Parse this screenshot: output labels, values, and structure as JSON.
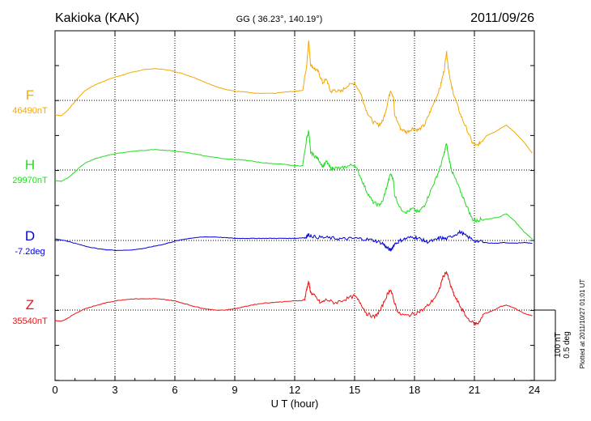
{
  "header": {
    "station": "Kakioka (KAK)",
    "coords": "GG ( 36.23°, 140.19°)",
    "date": "2011/09/26"
  },
  "side_note": "Plotted at 2011/10/27 01:01 UT",
  "scale_bar": {
    "label1": "100 nT",
    "label2": "0.5 deg"
  },
  "chart_data": {
    "type": "line",
    "title": "Kakioka (KAK)",
    "xlabel": "U T (hour)",
    "ylabel": "",
    "xlim": [
      0,
      24
    ],
    "x_ticks": [
      0,
      3,
      6,
      9,
      12,
      15,
      18,
      21,
      24
    ],
    "x_tick_labels": [
      "0",
      "3",
      "6",
      "9",
      "12",
      "15",
      "18",
      "21",
      "24"
    ],
    "grid": true,
    "scale": "100 nT per scale bar for F, H, Z (offset from baseline); 0.5 deg per scale bar for D",
    "series": [
      {
        "key": "F",
        "name": "F",
        "baseline_label": "46490nT",
        "color": "#f5a800",
        "unit": "nT",
        "points": [
          [
            0,
            -0.2
          ],
          [
            0.3,
            -0.22
          ],
          [
            0.6,
            -0.15
          ],
          [
            0.9,
            -0.05
          ],
          [
            1.2,
            0.05
          ],
          [
            1.5,
            0.14
          ],
          [
            2,
            0.22
          ],
          [
            2.5,
            0.28
          ],
          [
            3,
            0.33
          ],
          [
            3.5,
            0.37
          ],
          [
            4,
            0.41
          ],
          [
            4.5,
            0.44
          ],
          [
            5,
            0.45
          ],
          [
            5.5,
            0.44
          ],
          [
            6,
            0.41
          ],
          [
            6.5,
            0.37
          ],
          [
            7,
            0.32
          ],
          [
            7.5,
            0.26
          ],
          [
            8,
            0.2
          ],
          [
            8.5,
            0.16
          ],
          [
            9,
            0.13
          ],
          [
            9.5,
            0.12
          ],
          [
            10,
            0.1
          ],
          [
            10.5,
            0.1
          ],
          [
            11,
            0.1
          ],
          [
            11.5,
            0.12
          ],
          [
            12,
            0.13
          ],
          [
            12.4,
            0.14
          ],
          [
            12.6,
            0.5
          ],
          [
            12.7,
            0.85
          ],
          [
            12.8,
            0.5
          ],
          [
            13,
            0.45
          ],
          [
            13.2,
            0.4
          ],
          [
            13.4,
            0.25
          ],
          [
            13.6,
            0.3
          ],
          [
            13.8,
            0.12
          ],
          [
            14,
            0.15
          ],
          [
            14.3,
            0.12
          ],
          [
            14.6,
            0.2
          ],
          [
            15,
            0.25
          ],
          [
            15.3,
            0.1
          ],
          [
            15.6,
            -0.15
          ],
          [
            15.9,
            -0.3
          ],
          [
            16.2,
            -0.35
          ],
          [
            16.4,
            -0.3
          ],
          [
            16.6,
            -0.1
          ],
          [
            16.8,
            0.15
          ],
          [
            16.95,
            0.05
          ],
          [
            17,
            -0.2
          ],
          [
            17.3,
            -0.4
          ],
          [
            17.6,
            -0.45
          ],
          [
            17.9,
            -0.4
          ],
          [
            18.2,
            -0.42
          ],
          [
            18.5,
            -0.35
          ],
          [
            18.8,
            -0.15
          ],
          [
            19.1,
            0.05
          ],
          [
            19.3,
            0.2
          ],
          [
            19.5,
            0.45
          ],
          [
            19.6,
            0.7
          ],
          [
            19.7,
            0.45
          ],
          [
            19.85,
            0.2
          ],
          [
            20,
            0.05
          ],
          [
            20.3,
            -0.2
          ],
          [
            20.6,
            -0.4
          ],
          [
            20.9,
            -0.6
          ],
          [
            21.1,
            -0.65
          ],
          [
            21.3,
            -0.6
          ],
          [
            21.6,
            -0.5
          ],
          [
            22,
            -0.45
          ],
          [
            22.3,
            -0.4
          ],
          [
            22.6,
            -0.35
          ],
          [
            23,
            -0.45
          ],
          [
            23.5,
            -0.6
          ],
          [
            23.9,
            -0.75
          ]
        ]
      },
      {
        "key": "H",
        "name": "H",
        "baseline_label": "29970nT",
        "color": "#22dd22",
        "unit": "nT",
        "points": [
          [
            0,
            -0.15
          ],
          [
            0.3,
            -0.16
          ],
          [
            0.6,
            -0.12
          ],
          [
            0.9,
            -0.05
          ],
          [
            1.2,
            0.03
          ],
          [
            1.5,
            0.1
          ],
          [
            2,
            0.16
          ],
          [
            2.5,
            0.2
          ],
          [
            3,
            0.23
          ],
          [
            3.5,
            0.25
          ],
          [
            4,
            0.27
          ],
          [
            4.5,
            0.28
          ],
          [
            5,
            0.29
          ],
          [
            5.5,
            0.28
          ],
          [
            6,
            0.27
          ],
          [
            6.5,
            0.25
          ],
          [
            7,
            0.23
          ],
          [
            7.5,
            0.2
          ],
          [
            8,
            0.18
          ],
          [
            8.5,
            0.16
          ],
          [
            9,
            0.15
          ],
          [
            9.5,
            0.14
          ],
          [
            10,
            0.12
          ],
          [
            10.5,
            0.1
          ],
          [
            11,
            0.09
          ],
          [
            11.5,
            0.08
          ],
          [
            12,
            0.06
          ],
          [
            12.4,
            0.06
          ],
          [
            12.6,
            0.45
          ],
          [
            12.7,
            0.55
          ],
          [
            12.8,
            0.25
          ],
          [
            13,
            0.2
          ],
          [
            13.2,
            0.15
          ],
          [
            13.4,
            0.05
          ],
          [
            13.6,
            0.12
          ],
          [
            13.8,
            0.02
          ],
          [
            14,
            0.03
          ],
          [
            14.3,
            0.02
          ],
          [
            14.6,
            0.05
          ],
          [
            15,
            0.08
          ],
          [
            15.3,
            -0.1
          ],
          [
            15.6,
            -0.3
          ],
          [
            15.9,
            -0.45
          ],
          [
            16.2,
            -0.5
          ],
          [
            16.4,
            -0.45
          ],
          [
            16.6,
            -0.25
          ],
          [
            16.8,
            -0.05
          ],
          [
            16.95,
            -0.15
          ],
          [
            17,
            -0.35
          ],
          [
            17.3,
            -0.55
          ],
          [
            17.6,
            -0.6
          ],
          [
            17.9,
            -0.55
          ],
          [
            18.2,
            -0.6
          ],
          [
            18.5,
            -0.5
          ],
          [
            18.8,
            -0.3
          ],
          [
            19.1,
            -0.1
          ],
          [
            19.3,
            0.05
          ],
          [
            19.5,
            0.25
          ],
          [
            19.6,
            0.38
          ],
          [
            19.7,
            0.2
          ],
          [
            19.85,
            0.0
          ],
          [
            20,
            -0.1
          ],
          [
            20.3,
            -0.3
          ],
          [
            20.6,
            -0.5
          ],
          [
            20.9,
            -0.7
          ],
          [
            21.1,
            -0.72
          ],
          [
            21.3,
            -0.7
          ],
          [
            21.6,
            -0.7
          ],
          [
            22,
            -0.68
          ],
          [
            22.3,
            -0.66
          ],
          [
            22.6,
            -0.62
          ],
          [
            23,
            -0.72
          ],
          [
            23.5,
            -0.88
          ],
          [
            23.9,
            -0.98
          ]
        ]
      },
      {
        "key": "D",
        "name": "D",
        "baseline_label": "-7.2deg",
        "color": "#0000dd",
        "unit": "deg",
        "points": [
          [
            0,
            0.02
          ],
          [
            0.5,
            0.0
          ],
          [
            1,
            -0.04
          ],
          [
            1.5,
            -0.08
          ],
          [
            2,
            -0.11
          ],
          [
            2.5,
            -0.13
          ],
          [
            3,
            -0.14
          ],
          [
            3.5,
            -0.14
          ],
          [
            4,
            -0.13
          ],
          [
            4.5,
            -0.11
          ],
          [
            5,
            -0.08
          ],
          [
            5.5,
            -0.05
          ],
          [
            6,
            -0.01
          ],
          [
            6.5,
            0.02
          ],
          [
            7,
            0.04
          ],
          [
            7.5,
            0.05
          ],
          [
            8,
            0.05
          ],
          [
            8.5,
            0.04
          ],
          [
            9,
            0.03
          ],
          [
            9.5,
            0.03
          ],
          [
            10,
            0.03
          ],
          [
            10.5,
            0.03
          ],
          [
            11,
            0.03
          ],
          [
            11.5,
            0.03
          ],
          [
            12,
            0.03
          ],
          [
            12.5,
            0.04
          ],
          [
            12.7,
            0.08
          ],
          [
            13,
            0.05
          ],
          [
            13.5,
            0.04
          ],
          [
            14,
            0.03
          ],
          [
            14.5,
            0.02
          ],
          [
            15,
            0.03
          ],
          [
            15.5,
            0.02
          ],
          [
            16,
            0.0
          ],
          [
            16.4,
            -0.04
          ],
          [
            16.6,
            -0.1
          ],
          [
            16.8,
            -0.14
          ],
          [
            17,
            -0.05
          ],
          [
            17.3,
            0.0
          ],
          [
            17.6,
            0.03
          ],
          [
            18,
            0.05
          ],
          [
            18.3,
            0.02
          ],
          [
            18.6,
            -0.02
          ],
          [
            19,
            0.0
          ],
          [
            19.3,
            0.04
          ],
          [
            19.6,
            0.02
          ],
          [
            20,
            0.08
          ],
          [
            20.3,
            0.12
          ],
          [
            20.6,
            0.06
          ],
          [
            21,
            0.0
          ],
          [
            21.5,
            -0.03
          ],
          [
            22,
            -0.04
          ],
          [
            22.5,
            -0.03
          ],
          [
            23,
            -0.04
          ],
          [
            23.5,
            -0.03
          ],
          [
            23.9,
            -0.04
          ]
        ]
      },
      {
        "key": "Z",
        "name": "Z",
        "baseline_label": "35540nT",
        "color": "#ee1111",
        "unit": "nT",
        "points": [
          [
            0,
            -0.15
          ],
          [
            0.3,
            -0.16
          ],
          [
            0.6,
            -0.12
          ],
          [
            1,
            -0.05
          ],
          [
            1.5,
            0.02
          ],
          [
            2,
            0.06
          ],
          [
            2.5,
            0.1
          ],
          [
            3,
            0.13
          ],
          [
            3.5,
            0.15
          ],
          [
            4,
            0.16
          ],
          [
            4.5,
            0.16
          ],
          [
            5,
            0.16
          ],
          [
            5.5,
            0.15
          ],
          [
            6,
            0.13
          ],
          [
            6.5,
            0.09
          ],
          [
            7,
            0.05
          ],
          [
            7.5,
            0.02
          ],
          [
            8,
            0.0
          ],
          [
            8.5,
            0.0
          ],
          [
            9,
            0.02
          ],
          [
            9.5,
            0.05
          ],
          [
            10,
            0.08
          ],
          [
            10.5,
            0.1
          ],
          [
            11,
            0.11
          ],
          [
            11.5,
            0.12
          ],
          [
            12,
            0.13
          ],
          [
            12.5,
            0.14
          ],
          [
            12.6,
            0.3
          ],
          [
            12.7,
            0.4
          ],
          [
            12.8,
            0.25
          ],
          [
            13,
            0.2
          ],
          [
            13.3,
            0.1
          ],
          [
            13.6,
            0.15
          ],
          [
            14,
            0.1
          ],
          [
            14.5,
            0.15
          ],
          [
            15,
            0.2
          ],
          [
            15.3,
            0.1
          ],
          [
            15.6,
            -0.05
          ],
          [
            16,
            -0.1
          ],
          [
            16.3,
            0.0
          ],
          [
            16.6,
            0.2
          ],
          [
            16.8,
            0.3
          ],
          [
            16.95,
            0.15
          ],
          [
            17.2,
            -0.05
          ],
          [
            17.6,
            -0.08
          ],
          [
            18,
            -0.05
          ],
          [
            18.4,
            0.0
          ],
          [
            18.8,
            0.1
          ],
          [
            19.2,
            0.25
          ],
          [
            19.4,
            0.45
          ],
          [
            19.6,
            0.55
          ],
          [
            19.8,
            0.35
          ],
          [
            20,
            0.2
          ],
          [
            20.3,
            0.05
          ],
          [
            20.6,
            -0.1
          ],
          [
            21,
            -0.2
          ],
          [
            21.2,
            -0.18
          ],
          [
            21.5,
            -0.05
          ],
          [
            22,
            0.0
          ],
          [
            22.3,
            0.05
          ],
          [
            22.6,
            0.07
          ],
          [
            23,
            0.03
          ],
          [
            23.5,
            -0.05
          ],
          [
            23.9,
            -0.08
          ]
        ]
      }
    ]
  }
}
